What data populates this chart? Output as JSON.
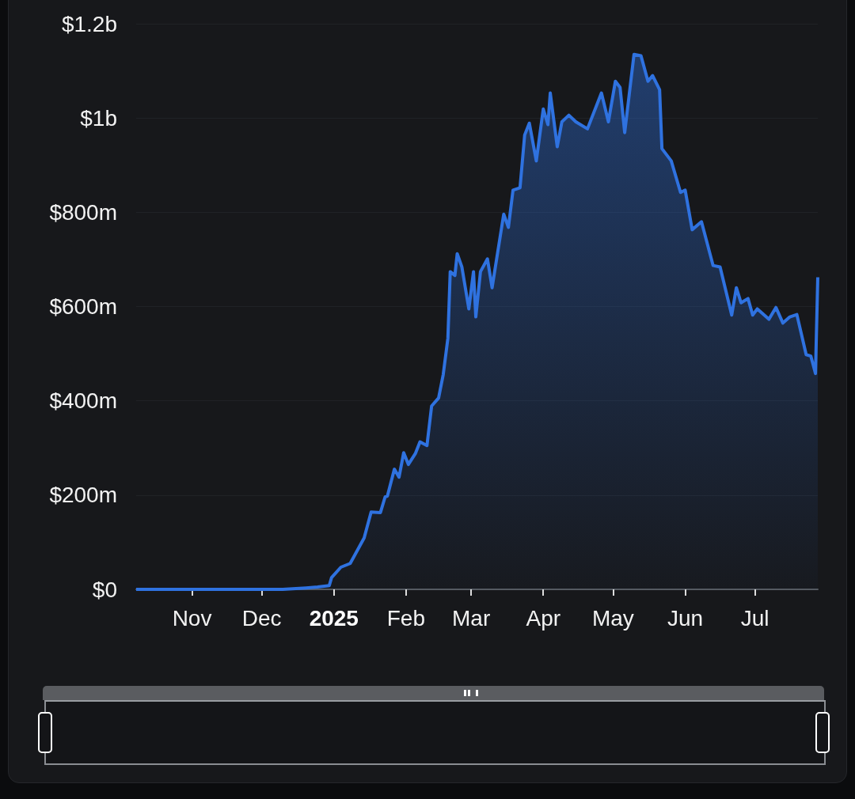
{
  "chart_data": {
    "type": "area",
    "x": [
      "2024-10-08",
      "2024-11-15",
      "2024-12-10",
      "2024-12-20",
      "2024-12-25",
      "2024-12-30",
      "2024-12-31",
      "2025-01-04",
      "2025-01-08",
      "2025-01-14",
      "2025-01-17",
      "2025-01-21",
      "2025-01-23",
      "2025-01-24",
      "2025-01-27",
      "2025-01-29",
      "2025-01-31",
      "2025-02-02",
      "2025-02-05",
      "2025-02-07",
      "2025-02-10",
      "2025-02-12",
      "2025-02-15",
      "2025-02-17",
      "2025-02-19",
      "2025-02-20",
      "2025-02-22",
      "2025-02-23",
      "2025-02-25",
      "2025-02-28",
      "2025-03-02",
      "2025-03-03",
      "2025-03-05",
      "2025-03-08",
      "2025-03-10",
      "2025-03-15",
      "2025-03-17",
      "2025-03-19",
      "2025-03-22",
      "2025-03-24",
      "2025-03-26",
      "2025-03-29",
      "2025-04-01",
      "2025-04-03",
      "2025-04-04",
      "2025-04-07",
      "2025-04-09",
      "2025-04-12",
      "2025-04-15",
      "2025-04-20",
      "2025-04-26",
      "2025-04-29",
      "2025-05-02",
      "2025-05-04",
      "2025-05-06",
      "2025-05-10",
      "2025-05-13",
      "2025-05-16",
      "2025-05-18",
      "2025-05-21",
      "2025-05-22",
      "2025-05-26",
      "2025-05-30",
      "2025-06-01",
      "2025-06-04",
      "2025-06-08",
      "2025-06-13",
      "2025-06-16",
      "2025-06-21",
      "2025-06-23",
      "2025-06-25",
      "2025-06-28",
      "2025-06-30",
      "2025-07-02",
      "2025-07-07",
      "2025-07-10",
      "2025-07-13",
      "2025-07-16",
      "2025-07-19",
      "2025-07-23",
      "2025-07-25",
      "2025-07-27",
      "2025-07-28"
    ],
    "series": [
      {
        "color": "#2f72e0",
        "values": [
          0,
          0,
          0,
          3000000,
          5000000,
          8000000,
          25000000,
          47000000,
          55000000,
          109000000,
          164000000,
          163000000,
          196000000,
          198000000,
          255000000,
          238000000,
          290000000,
          265000000,
          288000000,
          313000000,
          305000000,
          389000000,
          406000000,
          456000000,
          533000000,
          674000000,
          666000000,
          712000000,
          684000000,
          595000000,
          674000000,
          578000000,
          674000000,
          701000000,
          640000000,
          796000000,
          768000000,
          847000000,
          852000000,
          964000000,
          989000000,
          909000000,
          1019000000,
          986000000,
          1053000000,
          939000000,
          992000000,
          1006000000,
          992000000,
          977000000,
          1053000000,
          992000000,
          1078000000,
          1065000000,
          969000000,
          1135000000,
          1132000000,
          1078000000,
          1090000000,
          1060000000,
          935000000,
          909000000,
          842000000,
          847000000,
          763000000,
          780000000,
          687000000,
          684000000,
          582000000,
          640000000,
          608000000,
          617000000,
          582000000,
          595000000,
          573000000,
          598000000,
          565000000,
          578000000,
          583000000,
          498000000,
          495000000,
          458000000,
          662000000
        ]
      }
    ],
    "xlim": [
      "2024-10-08",
      "2025-07-28"
    ],
    "xticks": [
      {
        "value": "2024-11-01",
        "label": "Nov"
      },
      {
        "value": "2024-12-01",
        "label": "Dec"
      },
      {
        "value": "2025-01-01",
        "label": "2025"
      },
      {
        "value": "2025-02-01",
        "label": "Feb"
      },
      {
        "value": "2025-03-01",
        "label": "Mar"
      },
      {
        "value": "2025-04-01",
        "label": "Apr"
      },
      {
        "value": "2025-05-01",
        "label": "May"
      },
      {
        "value": "2025-06-01",
        "label": "Jun"
      },
      {
        "value": "2025-07-01",
        "label": "Jul"
      }
    ],
    "ylim": [
      0,
      1200000000
    ],
    "yticks": [
      {
        "value": 0,
        "label": "$0"
      },
      {
        "value": 200000000,
        "label": "$200m"
      },
      {
        "value": 400000000,
        "label": "$400m"
      },
      {
        "value": 600000000,
        "label": "$600m"
      },
      {
        "value": 800000000,
        "label": "$800m"
      },
      {
        "value": 1000000000,
        "label": "$1b"
      },
      {
        "value": 1200000000,
        "label": "$1.2b"
      }
    ],
    "grid": "y"
  }
}
